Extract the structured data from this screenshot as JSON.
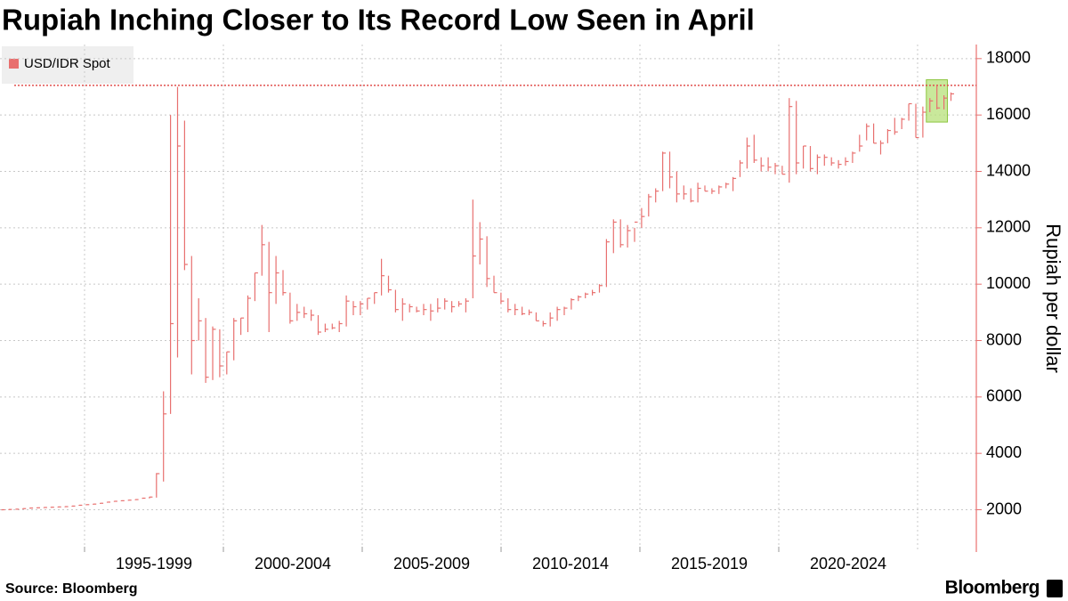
{
  "chart_data": {
    "type": "ohlc",
    "title": "Rupiah Inching Closer to Its Record Low Seen in April",
    "y_axis_label": "Rupiah per dollar",
    "source": "Source: Bloomberg",
    "brand": "Bloomberg",
    "legend_position": "top-left",
    "grid": true,
    "categories": [
      "1995-1999",
      "2000-2004",
      "2005-2009",
      "2010-2014",
      "2015-2019",
      "2020-2024"
    ],
    "ylim": [
      500,
      18500
    ],
    "yticks": [
      2000,
      4000,
      6000,
      8000,
      10000,
      12000,
      14000,
      16000,
      18000
    ],
    "reference_line": 17050,
    "reference_color": "#e0504f",
    "highlight_range": [
      15750,
      17250
    ],
    "highlight_color": "#b7e07a",
    "series": [
      {
        "name": "USD/IDR Spot",
        "color": "#e8706f",
        "high": [
          2010,
          2020,
          2030,
          2050,
          2070,
          2080,
          2090,
          2100,
          2110,
          2120,
          2140,
          2170,
          2190,
          2210,
          2240,
          2280,
          2310,
          2330,
          2350,
          2370,
          2420,
          2460,
          3300,
          6200,
          16000,
          17000,
          15800,
          11000,
          9500,
          8800,
          8500,
          8400,
          7600,
          8800,
          8800,
          9600,
          10400,
          12100,
          11500,
          11000,
          10500,
          9700,
          9300,
          9200,
          9100,
          8900,
          8600,
          8600,
          8700,
          9600,
          9400,
          9400,
          9500,
          9700,
          10900,
          10300,
          9800,
          9500,
          9300,
          9200,
          9300,
          9300,
          9500,
          9500,
          9400,
          9400,
          9500,
          13000,
          12200,
          11700,
          10300,
          9700,
          9500,
          9300,
          9200,
          9100,
          9000,
          8700,
          9000,
          9200,
          9200,
          9500,
          9600,
          9700,
          9800,
          10000,
          11600,
          12300,
          12300,
          12100,
          12000,
          12700,
          13200,
          13400,
          14700,
          14700,
          14000,
          13500,
          13400,
          13600,
          13500,
          13400,
          13500,
          13600,
          13800,
          14400,
          15200,
          15300,
          14500,
          14500,
          14300,
          14200,
          16600,
          16500,
          14900,
          14900,
          14600,
          14600,
          14500,
          14400,
          14500,
          14700,
          15300,
          15700,
          15700,
          15100,
          15500,
          15900,
          15900,
          16400,
          16400,
          16300,
          16600,
          17050,
          16700,
          16800
        ],
        "low": [
          1980,
          1990,
          2000,
          2020,
          2040,
          2050,
          2060,
          2070,
          2080,
          2090,
          2110,
          2140,
          2160,
          2180,
          2210,
          2250,
          2280,
          2300,
          2320,
          2340,
          2390,
          2400,
          2430,
          3000,
          5400,
          7400,
          10500,
          6800,
          8000,
          6500,
          6600,
          6700,
          6800,
          7300,
          8200,
          8300,
          9400,
          10300,
          8300,
          9300,
          9600,
          8600,
          8700,
          8800,
          8700,
          8200,
          8300,
          8400,
          8300,
          8500,
          8900,
          8900,
          9100,
          9300,
          9600,
          9700,
          9000,
          8700,
          9000,
          9000,
          8900,
          8700,
          9000,
          9100,
          9000,
          9200,
          9000,
          9500,
          10700,
          9900,
          9700,
          9300,
          9000,
          8900,
          8900,
          8900,
          8700,
          8500,
          8500,
          8700,
          8900,
          9100,
          9400,
          9500,
          9600,
          9700,
          9900,
          11100,
          11300,
          11300,
          11500,
          12000,
          12400,
          12900,
          13300,
          13400,
          12900,
          13000,
          12900,
          12900,
          13300,
          13200,
          13200,
          13400,
          13300,
          13800,
          14100,
          14300,
          14000,
          14000,
          13900,
          13900,
          13600,
          13900,
          14100,
          14000,
          13900,
          14200,
          14200,
          14100,
          14200,
          14300,
          14700,
          15100,
          15000,
          14600,
          15000,
          15300,
          15500,
          15800,
          15200,
          15200,
          16100,
          16200,
          16200,
          16500
        ],
        "close": [
          2000,
          2010,
          2020,
          2040,
          2060,
          2070,
          2080,
          2090,
          2100,
          2110,
          2130,
          2160,
          2180,
          2200,
          2230,
          2270,
          2300,
          2320,
          2340,
          2360,
          2410,
          2450,
          3280,
          5400,
          8600,
          14900,
          10700,
          8000,
          8700,
          6700,
          8400,
          7100,
          7600,
          8700,
          8800,
          9500,
          10400,
          11400,
          9700,
          10400,
          9700,
          8700,
          9000,
          8950,
          8900,
          8300,
          8400,
          8450,
          8600,
          9400,
          9200,
          9300,
          9500,
          9700,
          10300,
          9800,
          9100,
          9300,
          9200,
          9050,
          9100,
          9050,
          9150,
          9400,
          9200,
          9300,
          9400,
          11000,
          11600,
          10200,
          9700,
          9400,
          9100,
          9100,
          8950,
          9000,
          8700,
          8600,
          8800,
          9100,
          9150,
          9450,
          9550,
          9650,
          9700,
          9950,
          11500,
          12200,
          11400,
          11900,
          12200,
          12400,
          13100,
          13300,
          14650,
          13800,
          13200,
          13200,
          12950,
          13400,
          13300,
          13300,
          13450,
          13550,
          13750,
          14300,
          14900,
          14400,
          14200,
          14150,
          14200,
          13900,
          16300,
          14300,
          14900,
          14100,
          14500,
          14500,
          14300,
          14250,
          14350,
          14650,
          14900,
          15600,
          15000,
          15000,
          15450,
          15400,
          15850,
          16400,
          15200,
          16100,
          16500,
          16250,
          16600,
          16750
        ]
      }
    ]
  }
}
